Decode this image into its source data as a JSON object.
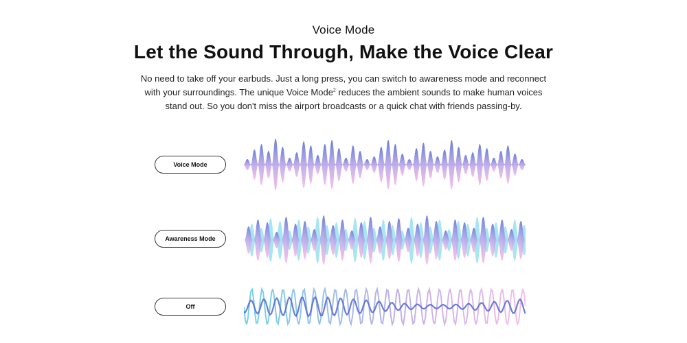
{
  "header": {
    "eyebrow": "Voice Mode",
    "title": "Let the Sound Through, Make the Voice Clear",
    "description_part1": "No need to take off your earbuds. Just a long press, you can switch to awareness mode and reconnect with your surroundings. The unique Voice Mode",
    "description_sup": "2",
    "description_part2": " reduces the ambient sounds to make human voices stand out. So you don't miss the airport broadcasts or a quick chat with friends passing-by."
  },
  "modes": [
    {
      "label": "Voice Mode"
    },
    {
      "label": "Awareness Mode"
    },
    {
      "label": "Off"
    }
  ],
  "colors": {
    "blue": "#5b6fd6",
    "pink": "#f4b7e6",
    "cyan": "#5fd0e8",
    "lavender": "#b9a7e8",
    "button_border": "#333333"
  }
}
